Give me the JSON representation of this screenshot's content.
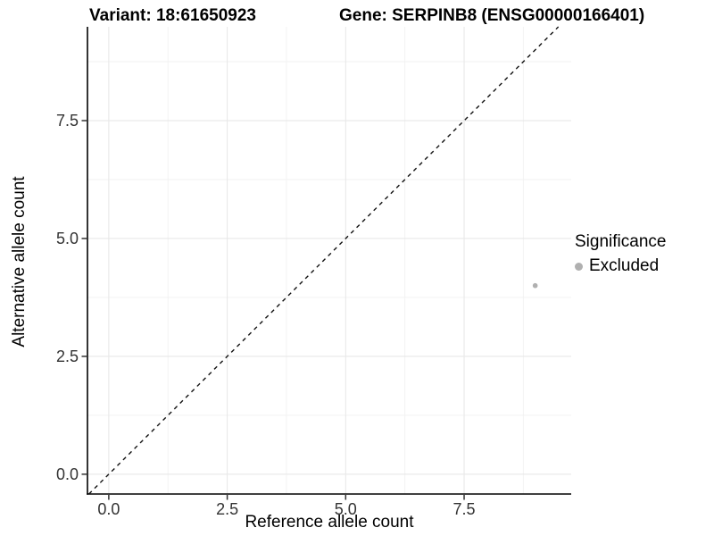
{
  "header": {
    "variant_title": "Variant: 18:61650923",
    "gene_title": "Gene: SERPINB8 (ENSG00000166401)"
  },
  "chart_data": {
    "type": "scatter",
    "title_left": "Variant: 18:61650923",
    "title_right": "Gene: SERPINB8 (ENSG00000166401)",
    "xlabel": "Reference allele count",
    "ylabel": "Alternative allele count",
    "xlim": [
      -0.45,
      9.76
    ],
    "ylim": [
      -0.42,
      9.49
    ],
    "x_ticks": [
      0.0,
      2.5,
      5.0,
      7.5
    ],
    "y_ticks": [
      0.0,
      2.5,
      5.0,
      7.5
    ],
    "x_tick_labels": [
      "0.0",
      "2.5",
      "5.0",
      "7.5"
    ],
    "y_tick_labels": [
      "0.0",
      "2.5",
      "5.0",
      "7.5"
    ],
    "x_minor_ticks": [
      1.25,
      3.75,
      6.25,
      8.75
    ],
    "y_minor_ticks": [
      1.25,
      3.75,
      6.25,
      8.75
    ],
    "grid": true,
    "points": [
      {
        "x": 9,
        "y": 4,
        "series": "Excluded"
      }
    ],
    "identity_line": {
      "slope": 1,
      "intercept": 0,
      "style": "dashed"
    },
    "legend": {
      "position": "right",
      "title": "Significance",
      "items": [
        {
          "label": "Excluded",
          "color": "#b0b0b0"
        }
      ]
    },
    "colors": {
      "point": "#b0b0b0",
      "grid_major": "#e8e8e8",
      "grid_minor": "#f2f2f2",
      "axis_line": "#000000",
      "tick_mark": "#333333",
      "tick_text": "#333333",
      "identity_line": "#111111",
      "background": "#ffffff"
    }
  }
}
